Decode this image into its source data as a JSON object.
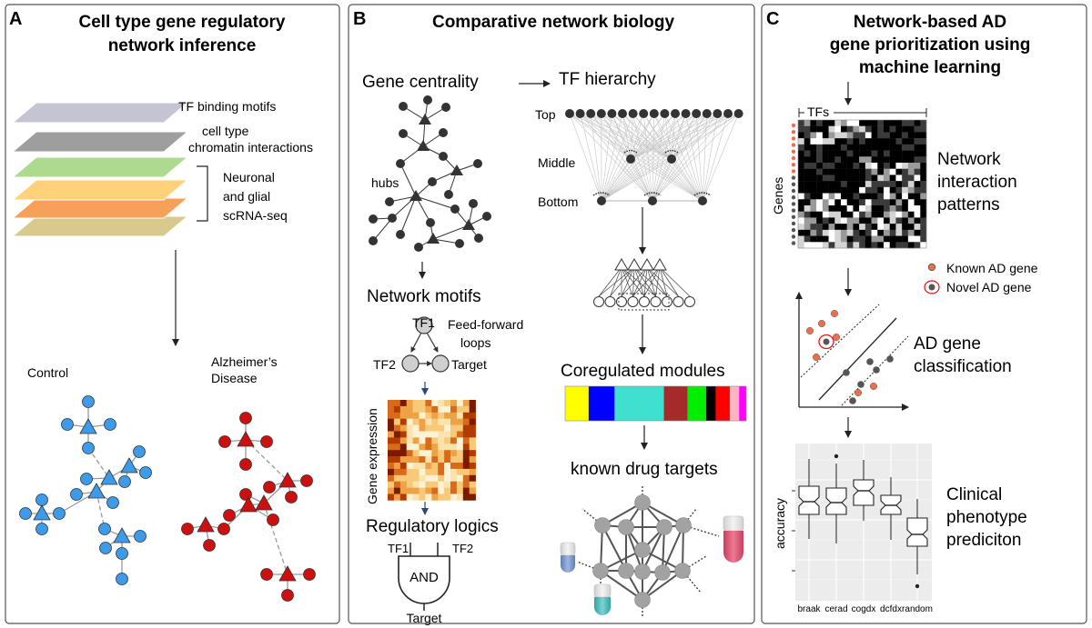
{
  "panelA": {
    "letter": "A",
    "title_line1": "Cell type gene regulatory",
    "title_line2": "network inference",
    "layer_tf": "TF binding motifs",
    "layer_chrom1": "cell type",
    "layer_chrom2": "chromatin interactions",
    "layer_rna1": "Neuronal",
    "layer_rna2": "and glial",
    "layer_rna3": "scRNA-seq",
    "control_label": "Control",
    "ad_label1": "Alzheimer’s",
    "ad_label2": "Disease",
    "colors": {
      "control": "#3d9be9",
      "disease": "#cc1010"
    }
  },
  "panelB": {
    "letter": "B",
    "title": "Comparative network biology",
    "gene_centrality": "Gene centrality",
    "hubs": "hubs",
    "tf_hierarchy": "TF hierarchy",
    "top": "Top",
    "middle": "Middle",
    "bottom": "Bottom",
    "network_motifs": "Network motifs",
    "tf1": "TF1",
    "tf2": "TF2",
    "target": "Target",
    "ffl1": "Feed-forward",
    "ffl2": "loops",
    "gene_expression": "Gene expression",
    "regulatory_logics": "Regulatory logics",
    "gate_tf1": "TF1",
    "gate_tf2": "TF2",
    "gate_and": "AND",
    "gate_target": "Target",
    "coregulated_modules": "Coregulated modules",
    "module_colors": [
      "#ffff00",
      "#0000ff",
      "#40e0d0",
      "#a52a2a",
      "#00ee00",
      "#000000",
      "#ff0000",
      "#ffb6c1",
      "#ff00ff"
    ],
    "module_widths": [
      1.0,
      1.1,
      2.1,
      1.0,
      0.8,
      0.4,
      0.6,
      0.4,
      0.3
    ],
    "known_drug_targets": "known drug targets"
  },
  "panelC": {
    "letter": "C",
    "title_line1": "Network-based AD",
    "title_line2": "gene prioritization using",
    "title_line3": "machine learning",
    "tfs": "TFs",
    "genes": "Genes",
    "interaction1": "Network",
    "interaction2": "interaction",
    "interaction3": "patterns",
    "legend_known": "Known AD gene",
    "legend_novel": "Novel AD gene",
    "classification1": "AD gene",
    "classification2": "classification",
    "clinical1": "Clinical",
    "clinical2": "phenotype",
    "clinical3": "prediciton",
    "ylabel": "accuracy",
    "categories": [
      "braak",
      "cerad",
      "cogdx",
      "dcfdx",
      "random"
    ],
    "colors": {
      "known": "#e8704e",
      "novel": "#555555"
    }
  }
}
